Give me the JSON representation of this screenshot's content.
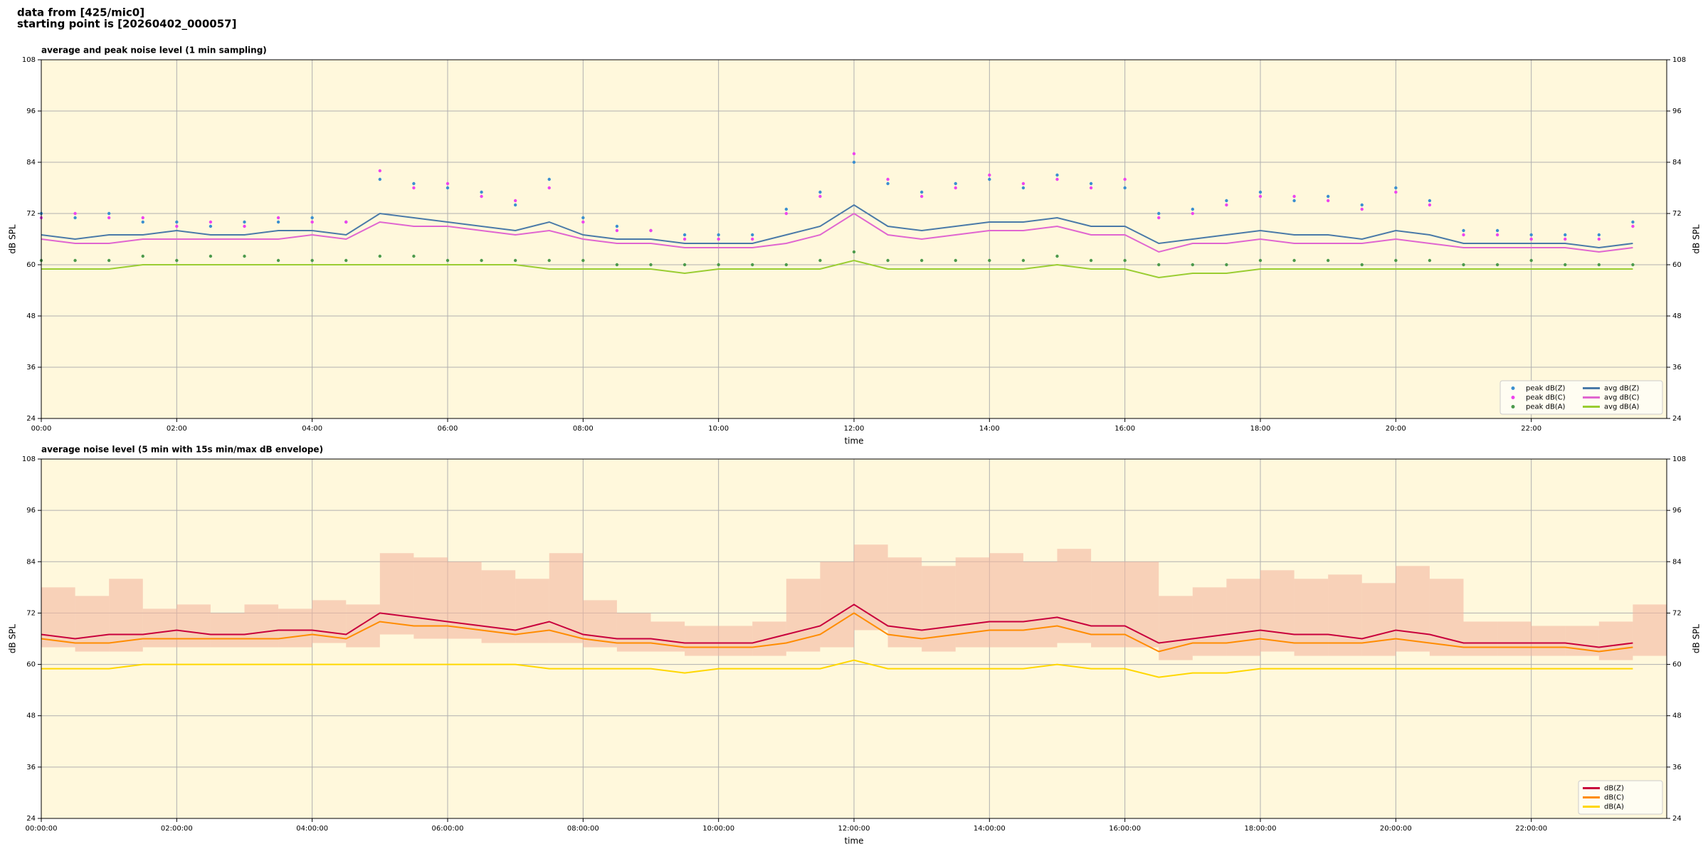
{
  "header": {
    "lines": [
      "data from [425/mic0]",
      "starting point is [20260402_000057]"
    ]
  },
  "chart_data": [
    {
      "type": "line",
      "title": "average and peak noise level (1 min sampling)",
      "xlabel": "time",
      "ylabel": "dB SPL",
      "x": [
        0,
        0.5,
        1,
        1.5,
        2,
        2.5,
        3,
        3.5,
        4,
        4.5,
        5,
        5.5,
        6,
        6.5,
        7,
        7.5,
        8,
        8.5,
        9,
        9.5,
        10,
        10.5,
        11,
        11.5,
        12,
        12.5,
        13,
        13.5,
        14,
        14.5,
        15,
        15.5,
        16,
        16.5,
        17,
        17.5,
        18,
        18.5,
        19,
        19.5,
        20,
        20.5,
        21,
        21.5,
        22,
        22.5,
        23,
        23.5
      ],
      "xlim": [
        0,
        24
      ],
      "ylim": [
        24,
        108
      ],
      "yticks": [
        24,
        36,
        48,
        60,
        72,
        84,
        96,
        108
      ],
      "xticks": [
        {
          "value": 0,
          "label": "00:00"
        },
        {
          "value": 2,
          "label": "02:00"
        },
        {
          "value": 4,
          "label": "04:00"
        },
        {
          "value": 6,
          "label": "06:00"
        },
        {
          "value": 8,
          "label": "08:00"
        },
        {
          "value": 10,
          "label": "10:00"
        },
        {
          "value": 12,
          "label": "12:00"
        },
        {
          "value": 14,
          "label": "14:00"
        },
        {
          "value": 16,
          "label": "16:00"
        },
        {
          "value": 18,
          "label": "18:00"
        },
        {
          "value": 20,
          "label": "20:00"
        },
        {
          "value": 22,
          "label": "22:00"
        }
      ],
      "grid": true,
      "legend": "lower right",
      "background": "#fff8dc",
      "series": [
        {
          "name": "peak dB(Z)",
          "type": "scatter",
          "color": "#3b8fd0",
          "values": [
            72,
            71,
            72,
            70,
            70,
            69,
            70,
            70,
            71,
            70,
            80,
            79,
            78,
            77,
            74,
            80,
            71,
            69,
            68,
            67,
            67,
            67,
            73,
            77,
            84,
            79,
            77,
            79,
            80,
            78,
            81,
            79,
            78,
            72,
            73,
            75,
            77,
            75,
            76,
            74,
            78,
            75,
            68,
            68,
            67,
            67,
            67,
            70
          ]
        },
        {
          "name": "peak dB(C)",
          "type": "scatter",
          "color": "#ee44ee",
          "values": [
            71,
            72,
            71,
            71,
            69,
            70,
            69,
            71,
            70,
            70,
            82,
            78,
            79,
            76,
            75,
            78,
            70,
            68,
            68,
            66,
            66,
            66,
            72,
            76,
            86,
            80,
            76,
            78,
            81,
            79,
            80,
            78,
            80,
            71,
            72,
            74,
            76,
            76,
            75,
            73,
            77,
            74,
            67,
            67,
            66,
            66,
            66,
            69
          ]
        },
        {
          "name": "peak dB(A)",
          "type": "scatter",
          "color": "#4c9a4c",
          "values": [
            61,
            61,
            61,
            62,
            61,
            62,
            62,
            61,
            61,
            61,
            62,
            62,
            61,
            61,
            61,
            61,
            61,
            60,
            60,
            60,
            60,
            60,
            60,
            61,
            63,
            61,
            61,
            61,
            61,
            61,
            62,
            61,
            61,
            60,
            60,
            60,
            61,
            61,
            61,
            60,
            61,
            61,
            60,
            60,
            61,
            60,
            60,
            60
          ]
        },
        {
          "name": "avg dB(Z)",
          "type": "line",
          "color": "#4a7aa8",
          "values": [
            67,
            66,
            67,
            67,
            68,
            67,
            67,
            68,
            68,
            67,
            72,
            71,
            70,
            69,
            68,
            70,
            67,
            66,
            66,
            65,
            65,
            65,
            67,
            69,
            74,
            69,
            68,
            69,
            70,
            70,
            71,
            69,
            69,
            65,
            66,
            67,
            68,
            67,
            67,
            66,
            68,
            67,
            65,
            65,
            65,
            65,
            64,
            65
          ]
        },
        {
          "name": "avg dB(C)",
          "type": "line",
          "color": "#e066d0",
          "values": [
            66,
            65,
            65,
            66,
            66,
            66,
            66,
            66,
            67,
            66,
            70,
            69,
            69,
            68,
            67,
            68,
            66,
            65,
            65,
            64,
            64,
            64,
            65,
            67,
            72,
            67,
            66,
            67,
            68,
            68,
            69,
            67,
            67,
            63,
            65,
            65,
            66,
            65,
            65,
            65,
            66,
            65,
            64,
            64,
            64,
            64,
            63,
            64
          ]
        },
        {
          "name": "avg dB(A)",
          "type": "line",
          "color": "#9acd32",
          "values": [
            59,
            59,
            59,
            60,
            60,
            60,
            60,
            60,
            60,
            60,
            60,
            60,
            60,
            60,
            60,
            59,
            59,
            59,
            59,
            58,
            59,
            59,
            59,
            59,
            61,
            59,
            59,
            59,
            59,
            59,
            60,
            59,
            59,
            57,
            58,
            58,
            59,
            59,
            59,
            59,
            59,
            59,
            59,
            59,
            59,
            59,
            59,
            59
          ]
        }
      ]
    },
    {
      "type": "line",
      "title": "average noise level (5 min with 15s min/max dB envelope)",
      "xlabel": "time",
      "ylabel": "dB SPL",
      "x": [
        0,
        0.5,
        1,
        1.5,
        2,
        2.5,
        3,
        3.5,
        4,
        4.5,
        5,
        5.5,
        6,
        6.5,
        7,
        7.5,
        8,
        8.5,
        9,
        9.5,
        10,
        10.5,
        11,
        11.5,
        12,
        12.5,
        13,
        13.5,
        14,
        14.5,
        15,
        15.5,
        16,
        16.5,
        17,
        17.5,
        18,
        18.5,
        19,
        19.5,
        20,
        20.5,
        21,
        21.5,
        22,
        22.5,
        23,
        23.5
      ],
      "xlim": [
        0,
        24
      ],
      "ylim": [
        24,
        108
      ],
      "yticks": [
        24,
        36,
        48,
        60,
        72,
        84,
        96,
        108
      ],
      "xticks": [
        {
          "value": 0,
          "label": "00:00:00"
        },
        {
          "value": 2,
          "label": "02:00:00"
        },
        {
          "value": 4,
          "label": "04:00:00"
        },
        {
          "value": 6,
          "label": "06:00:00"
        },
        {
          "value": 8,
          "label": "08:00:00"
        },
        {
          "value": 10,
          "label": "10:00:00"
        },
        {
          "value": 12,
          "label": "12:00:00"
        },
        {
          "value": 14,
          "label": "14:00:00"
        },
        {
          "value": 16,
          "label": "16:00:00"
        },
        {
          "value": 18,
          "label": "18:00:00"
        },
        {
          "value": 20,
          "label": "20:00:00"
        },
        {
          "value": 22,
          "label": "22:00:00"
        }
      ],
      "grid": true,
      "legend": "lower right",
      "background": "#fff8dc",
      "envelope": {
        "color": "#f4b8a0",
        "min": [
          64,
          63,
          63,
          64,
          64,
          64,
          64,
          64,
          65,
          64,
          67,
          66,
          66,
          65,
          65,
          65,
          64,
          63,
          63,
          62,
          62,
          62,
          63,
          64,
          68,
          64,
          63,
          64,
          64,
          64,
          65,
          64,
          64,
          61,
          62,
          62,
          63,
          62,
          62,
          62,
          63,
          62,
          62,
          62,
          62,
          62,
          61,
          62
        ],
        "max": [
          78,
          76,
          80,
          73,
          74,
          72,
          74,
          73,
          75,
          74,
          86,
          85,
          84,
          82,
          80,
          86,
          75,
          72,
          70,
          69,
          69,
          70,
          80,
          84,
          88,
          85,
          83,
          85,
          86,
          84,
          87,
          84,
          84,
          76,
          78,
          80,
          82,
          80,
          81,
          79,
          83,
          80,
          70,
          70,
          69,
          69,
          70,
          74
        ]
      },
      "series": [
        {
          "name": "dB(Z)",
          "type": "line",
          "color": "#c8003c",
          "values": [
            67,
            66,
            67,
            67,
            68,
            67,
            67,
            68,
            68,
            67,
            72,
            71,
            70,
            69,
            68,
            70,
            67,
            66,
            66,
            65,
            65,
            65,
            67,
            69,
            74,
            69,
            68,
            69,
            70,
            70,
            71,
            69,
            69,
            65,
            66,
            67,
            68,
            67,
            67,
            66,
            68,
            67,
            65,
            65,
            65,
            65,
            64,
            65
          ]
        },
        {
          "name": "dB(C)",
          "type": "line",
          "color": "#ff8c00",
          "values": [
            66,
            65,
            65,
            66,
            66,
            66,
            66,
            66,
            67,
            66,
            70,
            69,
            69,
            68,
            67,
            68,
            66,
            65,
            65,
            64,
            64,
            64,
            65,
            67,
            72,
            67,
            66,
            67,
            68,
            68,
            69,
            67,
            67,
            63,
            65,
            65,
            66,
            65,
            65,
            65,
            66,
            65,
            64,
            64,
            64,
            64,
            63,
            64
          ]
        },
        {
          "name": "dB(A)",
          "type": "line",
          "color": "#ffd700",
          "values": [
            59,
            59,
            59,
            60,
            60,
            60,
            60,
            60,
            60,
            60,
            60,
            60,
            60,
            60,
            60,
            59,
            59,
            59,
            59,
            58,
            59,
            59,
            59,
            59,
            61,
            59,
            59,
            59,
            59,
            59,
            60,
            59,
            59,
            57,
            58,
            58,
            59,
            59,
            59,
            59,
            59,
            59,
            59,
            59,
            59,
            59,
            59,
            59
          ]
        }
      ]
    }
  ]
}
